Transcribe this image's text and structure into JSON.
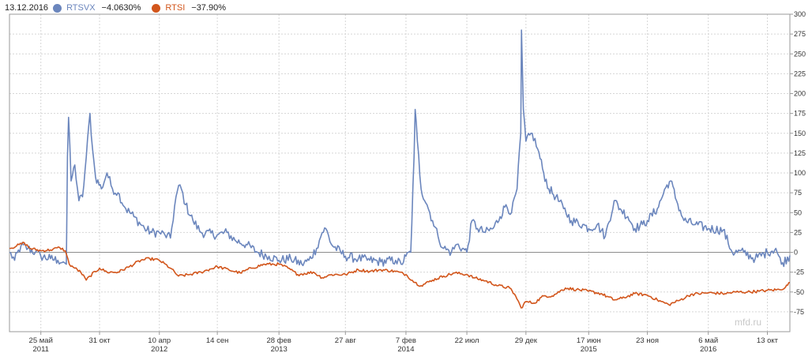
{
  "legend": {
    "date": "13.12.2016",
    "items": [
      {
        "name": "RTSVX",
        "value": "−4.0630%",
        "color": "#6b86bd"
      },
      {
        "name": "RTSI",
        "value": "−37.90%",
        "color": "#d2561c"
      }
    ]
  },
  "watermark": "mfd.ru",
  "chart_data": {
    "type": "line",
    "ylim": [
      -100,
      300
    ],
    "yticks": [
      300,
      275,
      250,
      225,
      200,
      175,
      150,
      125,
      100,
      75,
      50,
      25,
      0,
      -25,
      -50,
      -75
    ],
    "xlim": [
      "2011-03-01",
      "2016-12-13"
    ],
    "xticks": [
      {
        "date": "2011-05-25",
        "label": "25 май",
        "year": "2011"
      },
      {
        "date": "2011-10-31",
        "label": "31 окт"
      },
      {
        "date": "2012-04-10",
        "label": "10 апр",
        "year": "2012"
      },
      {
        "date": "2012-09-14",
        "label": "14 сен"
      },
      {
        "date": "2013-02-28",
        "label": "28 фев",
        "year": "2013"
      },
      {
        "date": "2013-08-27",
        "label": "27 авг"
      },
      {
        "date": "2014-02-07",
        "label": "7 фев",
        "year": "2014"
      },
      {
        "date": "2014-07-22",
        "label": "22 июл"
      },
      {
        "date": "2014-12-29",
        "label": "29 дек"
      },
      {
        "date": "2015-06-17",
        "label": "17 июн",
        "year": "2015"
      },
      {
        "date": "2015-11-23",
        "label": "23 ноя"
      },
      {
        "date": "2016-05-06",
        "label": "6 май",
        "year": "2016"
      },
      {
        "date": "2016-10-13",
        "label": "13 окт"
      }
    ],
    "grid": true,
    "series": [
      {
        "name": "RTSVX",
        "color": "#6b86bd",
        "points": [
          [
            "2011-03-01",
            0
          ],
          [
            "2011-03-15",
            -10
          ],
          [
            "2011-04-01",
            8
          ],
          [
            "2011-04-20",
            5
          ],
          [
            "2011-05-10",
            0
          ],
          [
            "2011-05-25",
            -5
          ],
          [
            "2011-06-20",
            -8
          ],
          [
            "2011-07-10",
            -10
          ],
          [
            "2011-07-25",
            -12
          ],
          [
            "2011-08-02",
            -15
          ],
          [
            "2011-08-05",
            120
          ],
          [
            "2011-08-08",
            170
          ],
          [
            "2011-08-15",
            90
          ],
          [
            "2011-08-25",
            110
          ],
          [
            "2011-09-05",
            65
          ],
          [
            "2011-09-15",
            70
          ],
          [
            "2011-09-25",
            120
          ],
          [
            "2011-10-05",
            175
          ],
          [
            "2011-10-12",
            130
          ],
          [
            "2011-10-20",
            95
          ],
          [
            "2011-11-05",
            80
          ],
          [
            "2011-11-20",
            100
          ],
          [
            "2011-12-05",
            80
          ],
          [
            "2011-12-20",
            75
          ],
          [
            "2012-01-10",
            55
          ],
          [
            "2012-02-01",
            45
          ],
          [
            "2012-03-01",
            30
          ],
          [
            "2012-03-20",
            25
          ],
          [
            "2012-04-10",
            25
          ],
          [
            "2012-04-25",
            22
          ],
          [
            "2012-05-10",
            18
          ],
          [
            "2012-05-25",
            70
          ],
          [
            "2012-06-05",
            85
          ],
          [
            "2012-06-20",
            60
          ],
          [
            "2012-07-10",
            40
          ],
          [
            "2012-08-01",
            25
          ],
          [
            "2012-09-14",
            22
          ],
          [
            "2012-10-10",
            25
          ],
          [
            "2012-11-01",
            15
          ],
          [
            "2012-12-01",
            10
          ],
          [
            "2013-01-01",
            0
          ],
          [
            "2013-02-01",
            -5
          ],
          [
            "2013-02-28",
            -10
          ],
          [
            "2013-04-01",
            -8
          ],
          [
            "2013-05-01",
            -15
          ],
          [
            "2013-05-20",
            -10
          ],
          [
            "2013-06-10",
            5
          ],
          [
            "2013-06-25",
            25
          ],
          [
            "2013-07-05",
            30
          ],
          [
            "2013-07-20",
            10
          ],
          [
            "2013-08-27",
            -5
          ],
          [
            "2013-10-01",
            -8
          ],
          [
            "2013-11-01",
            -10
          ],
          [
            "2013-12-01",
            -12
          ],
          [
            "2014-01-10",
            -10
          ],
          [
            "2014-01-25",
            -15
          ],
          [
            "2014-02-07",
            -5
          ],
          [
            "2014-02-20",
            0
          ],
          [
            "2014-03-01",
            120
          ],
          [
            "2014-03-04",
            180
          ],
          [
            "2014-03-10",
            140
          ],
          [
            "2014-03-20",
            80
          ],
          [
            "2014-04-05",
            60
          ],
          [
            "2014-04-20",
            40
          ],
          [
            "2014-05-05",
            20
          ],
          [
            "2014-05-20",
            5
          ],
          [
            "2014-06-10",
            0
          ],
          [
            "2014-06-25",
            10
          ],
          [
            "2014-07-10",
            5
          ],
          [
            "2014-07-22",
            0
          ],
          [
            "2014-08-05",
            40
          ],
          [
            "2014-08-20",
            30
          ],
          [
            "2014-09-10",
            25
          ],
          [
            "2014-10-01",
            30
          ],
          [
            "2014-10-20",
            45
          ],
          [
            "2014-11-05",
            60
          ],
          [
            "2014-11-20",
            50
          ],
          [
            "2014-12-05",
            80
          ],
          [
            "2014-12-15",
            150
          ],
          [
            "2014-12-17",
            280
          ],
          [
            "2014-12-22",
            180
          ],
          [
            "2014-12-29",
            140
          ],
          [
            "2015-01-15",
            150
          ],
          [
            "2015-01-30",
            130
          ],
          [
            "2015-02-15",
            100
          ],
          [
            "2015-03-01",
            80
          ],
          [
            "2015-03-20",
            70
          ],
          [
            "2015-04-10",
            55
          ],
          [
            "2015-05-01",
            40
          ],
          [
            "2015-06-01",
            35
          ],
          [
            "2015-06-17",
            30
          ],
          [
            "2015-07-10",
            35
          ],
          [
            "2015-08-01",
            20
          ],
          [
            "2015-08-25",
            65
          ],
          [
            "2015-09-10",
            55
          ],
          [
            "2015-10-01",
            45
          ],
          [
            "2015-10-20",
            30
          ],
          [
            "2015-11-10",
            35
          ],
          [
            "2015-11-23",
            40
          ],
          [
            "2015-12-20",
            55
          ],
          [
            "2016-01-15",
            85
          ],
          [
            "2016-01-25",
            90
          ],
          [
            "2016-02-10",
            65
          ],
          [
            "2016-03-01",
            40
          ],
          [
            "2016-04-01",
            35
          ],
          [
            "2016-05-06",
            30
          ],
          [
            "2016-06-15",
            28
          ],
          [
            "2016-07-10",
            0
          ],
          [
            "2016-08-10",
            0
          ],
          [
            "2016-09-10",
            -8
          ],
          [
            "2016-10-13",
            0
          ],
          [
            "2016-11-05",
            5
          ],
          [
            "2016-11-20",
            -15
          ],
          [
            "2016-12-13",
            -4
          ]
        ]
      },
      {
        "name": "RTSI",
        "color": "#d2561c",
        "points": [
          [
            "2011-03-01",
            5
          ],
          [
            "2011-03-20",
            8
          ],
          [
            "2011-04-10",
            12
          ],
          [
            "2011-04-25",
            5
          ],
          [
            "2011-05-25",
            2
          ],
          [
            "2011-06-20",
            3
          ],
          [
            "2011-07-15",
            6
          ],
          [
            "2011-07-30",
            2
          ],
          [
            "2011-08-10",
            -15
          ],
          [
            "2011-08-25",
            -20
          ],
          [
            "2011-09-10",
            -25
          ],
          [
            "2011-09-25",
            -35
          ],
          [
            "2011-10-05",
            -30
          ],
          [
            "2011-10-31",
            -20
          ],
          [
            "2011-11-20",
            -25
          ],
          [
            "2011-12-20",
            -25
          ],
          [
            "2012-01-20",
            -18
          ],
          [
            "2012-02-20",
            -10
          ],
          [
            "2012-03-15",
            -8
          ],
          [
            "2012-04-10",
            -10
          ],
          [
            "2012-05-10",
            -20
          ],
          [
            "2012-06-01",
            -30
          ],
          [
            "2012-07-01",
            -28
          ],
          [
            "2012-08-01",
            -25
          ],
          [
            "2012-09-14",
            -18
          ],
          [
            "2012-10-15",
            -22
          ],
          [
            "2012-11-15",
            -26
          ],
          [
            "2012-12-15",
            -20
          ],
          [
            "2013-01-20",
            -15
          ],
          [
            "2013-02-28",
            -15
          ],
          [
            "2013-03-25",
            -20
          ],
          [
            "2013-04-20",
            -28
          ],
          [
            "2013-06-01",
            -25
          ],
          [
            "2013-06-25",
            -32
          ],
          [
            "2013-07-20",
            -28
          ],
          [
            "2013-08-27",
            -28
          ],
          [
            "2013-10-01",
            -22
          ],
          [
            "2013-11-01",
            -24
          ],
          [
            "2013-12-01",
            -22
          ],
          [
            "2014-01-10",
            -24
          ],
          [
            "2014-02-07",
            -28
          ],
          [
            "2014-03-03",
            -38
          ],
          [
            "2014-03-20",
            -42
          ],
          [
            "2014-04-20",
            -35
          ],
          [
            "2014-05-20",
            -30
          ],
          [
            "2014-06-20",
            -26
          ],
          [
            "2014-07-22",
            -28
          ],
          [
            "2014-08-10",
            -32
          ],
          [
            "2014-09-10",
            -36
          ],
          [
            "2014-10-15",
            -42
          ],
          [
            "2014-11-15",
            -45
          ],
          [
            "2014-12-01",
            -55
          ],
          [
            "2014-12-16",
            -70
          ],
          [
            "2014-12-29",
            -62
          ],
          [
            "2015-01-20",
            -64
          ],
          [
            "2015-02-15",
            -55
          ],
          [
            "2015-03-10",
            -55
          ],
          [
            "2015-04-15",
            -45
          ],
          [
            "2015-05-15",
            -47
          ],
          [
            "2015-06-17",
            -49
          ],
          [
            "2015-07-20",
            -52
          ],
          [
            "2015-08-25",
            -60
          ],
          [
            "2015-09-15",
            -58
          ],
          [
            "2015-10-20",
            -52
          ],
          [
            "2015-11-23",
            -54
          ],
          [
            "2015-12-20",
            -60
          ],
          [
            "2016-01-20",
            -66
          ],
          [
            "2016-02-20",
            -60
          ],
          [
            "2016-03-20",
            -53
          ],
          [
            "2016-05-06",
            -51
          ],
          [
            "2016-06-20",
            -52
          ],
          [
            "2016-07-20",
            -50
          ],
          [
            "2016-08-20",
            -50
          ],
          [
            "2016-09-20",
            -49
          ],
          [
            "2016-10-13",
            -48
          ],
          [
            "2016-11-15",
            -47
          ],
          [
            "2016-12-01",
            -44
          ],
          [
            "2016-12-13",
            -38
          ]
        ]
      }
    ]
  }
}
